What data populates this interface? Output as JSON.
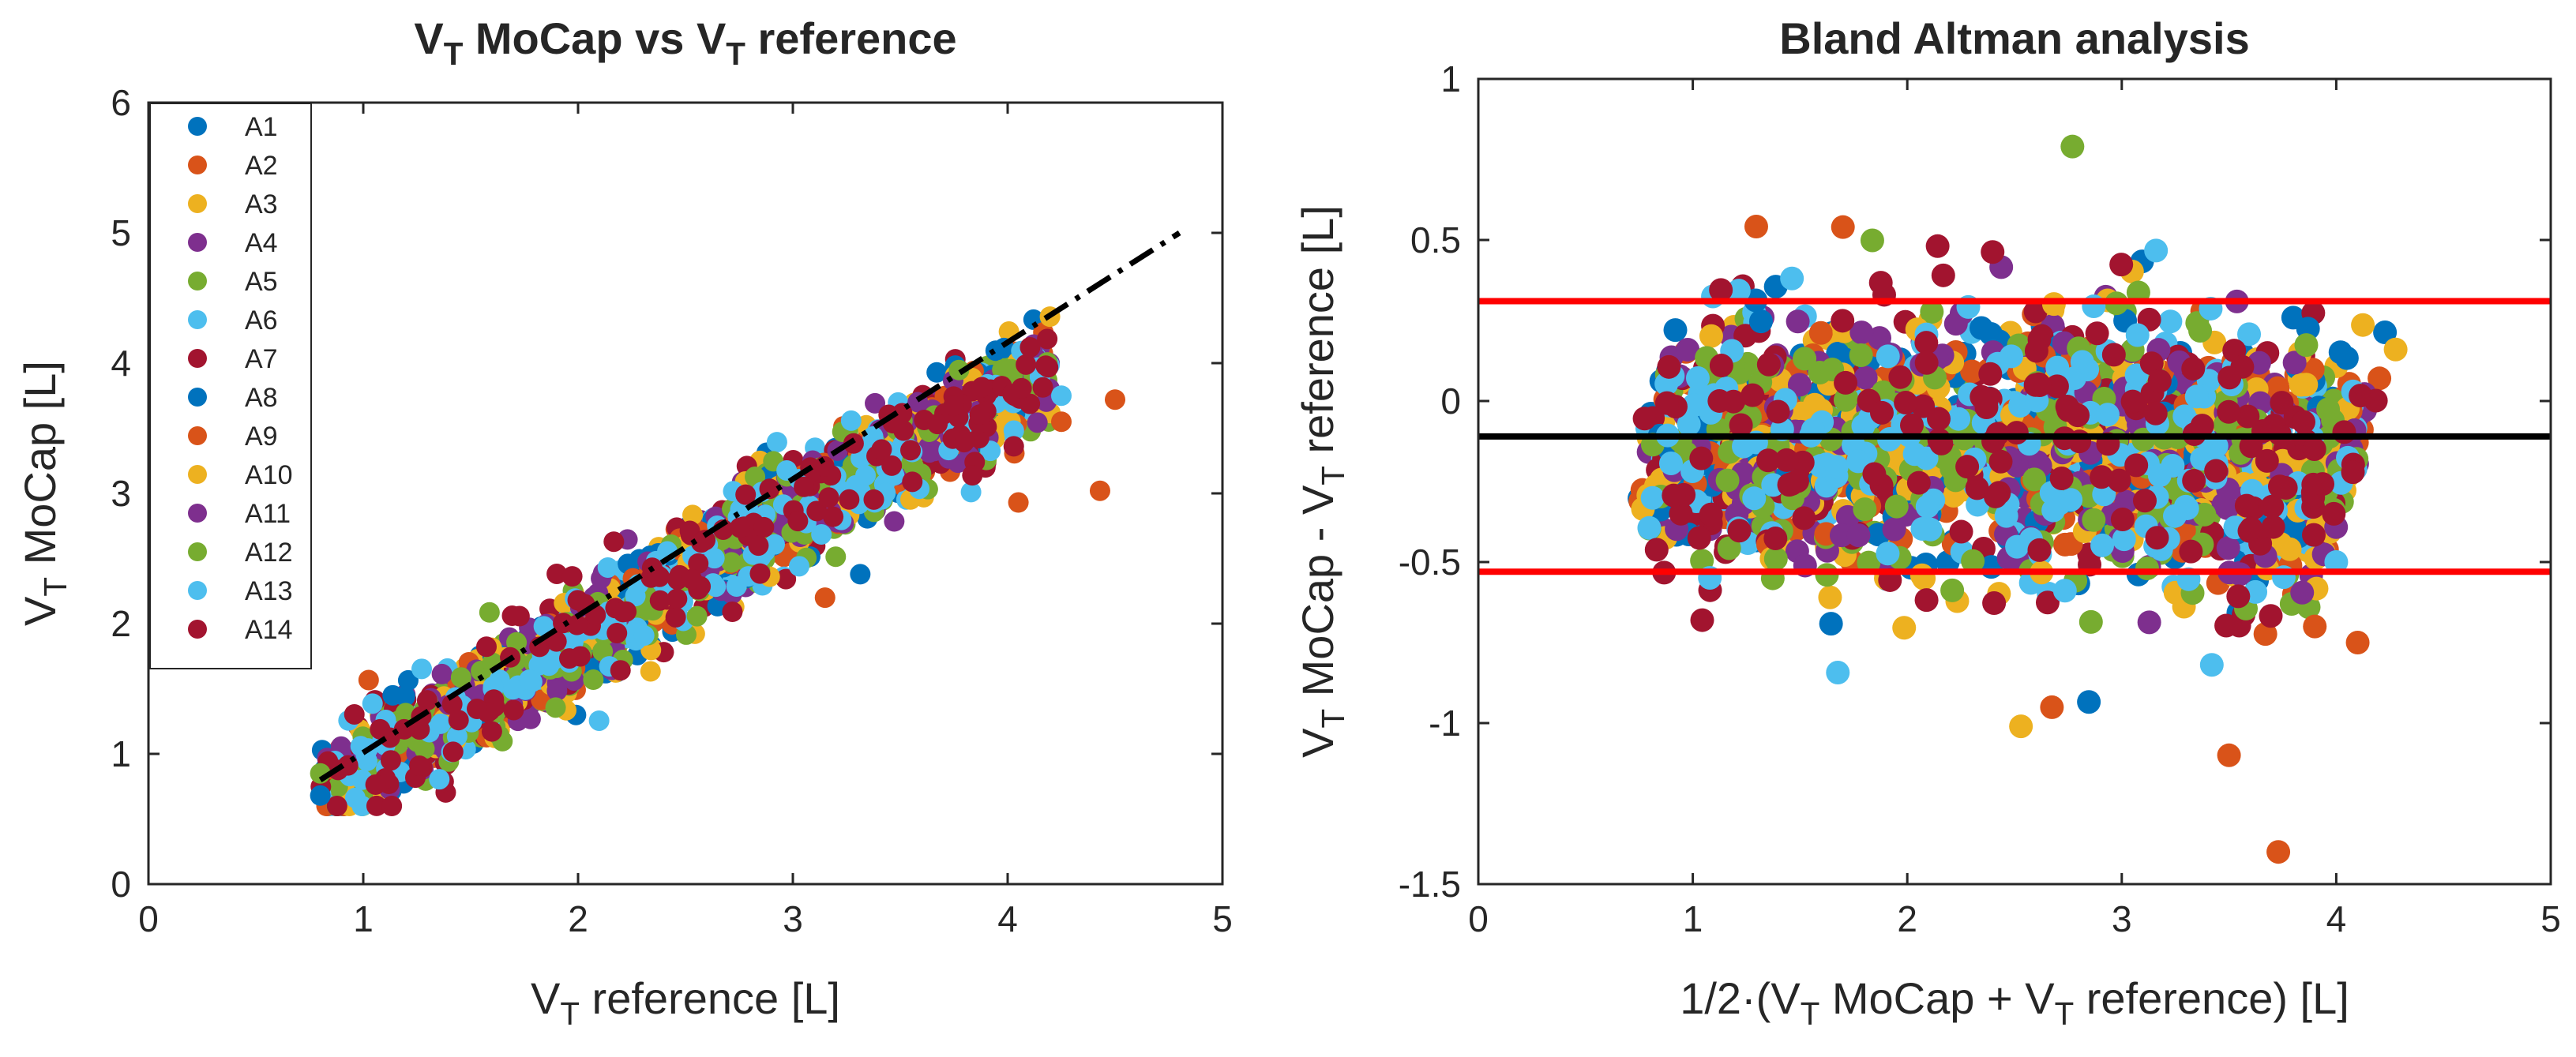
{
  "chart_data": [
    {
      "type": "scatter",
      "title": {
        "main": "V",
        "sub1": "T",
        "mid": " MoCap vs V",
        "sub2": "T",
        "end": " reference"
      },
      "xlabel": {
        "main": "V",
        "sub": "T",
        "rest": " reference [L]"
      },
      "ylabel": {
        "main": "V",
        "sub": "T",
        "rest": " MoCap [L]"
      },
      "xlim": [
        0,
        5
      ],
      "ylim": [
        0,
        6
      ],
      "xticks": [
        "0",
        "1",
        "2",
        "3",
        "4",
        "5"
      ],
      "yticks": [
        "0",
        "1",
        "2",
        "3",
        "4",
        "5",
        "6"
      ],
      "legend": [
        "A1",
        "A2",
        "A3",
        "A4",
        "A5",
        "A6",
        "A7",
        "A8",
        "A9",
        "A10",
        "A11",
        "A12",
        "A13",
        "A14"
      ],
      "legend_position": "top-left",
      "identity_line": {
        "style": "dash-dot",
        "color": "#000000",
        "x": [
          0.8,
          4.8
        ],
        "y": [
          0.8,
          5.0
        ]
      },
      "point_model": {
        "description": "dense clusters along V_T MoCap ≈ V_T reference",
        "x_range": [
          0.8,
          4.5
        ],
        "spread": 0.22
      },
      "notable_points": [
        {
          "x": 4.25,
          "y": 3.75,
          "series": "A13"
        },
        {
          "x": 4.5,
          "y": 3.72,
          "series": "A9"
        },
        {
          "x": 4.25,
          "y": 3.55,
          "series": "A2"
        },
        {
          "x": 4.43,
          "y": 3.02,
          "series": "A9"
        },
        {
          "x": 4.05,
          "y": 2.93,
          "series": "A2"
        },
        {
          "x": 0.8,
          "y": 0.68,
          "series": "A1"
        },
        {
          "x": 0.8,
          "y": 0.85,
          "series": "A5"
        }
      ]
    },
    {
      "type": "scatter",
      "title": "Bland Altman analysis",
      "xlabel": {
        "pre": "1/2·(V",
        "sub1": "T",
        "mid": " MoCap + V",
        "sub2": "T",
        "end": " reference) [L]"
      },
      "ylabel": {
        "main": "V",
        "sub1": "T",
        "mid": " MoCap - V",
        "sub2": "T",
        "end": " reference [L]"
      },
      "xlim": [
        0,
        5
      ],
      "ylim": [
        -1.5,
        1
      ],
      "xticks": [
        "0",
        "1",
        "2",
        "3",
        "4",
        "5"
      ],
      "yticks": [
        "-1.5",
        "-1",
        "-0.5",
        "0",
        "0.5",
        "1"
      ],
      "mean_line": {
        "y": -0.11,
        "color": "#000000"
      },
      "limits_of_agreement": [
        {
          "y": 0.31,
          "color": "#ff0000"
        },
        {
          "y": -0.53,
          "color": "#ff0000"
        }
      ],
      "point_model": {
        "description": "differences around mean bias",
        "x_range": [
          0.75,
          4.3
        ],
        "y_range": [
          -0.95,
          0.8
        ]
      },
      "notable_points": [
        {
          "x": 3.73,
          "y": -1.4,
          "series": "A2"
        },
        {
          "x": 3.5,
          "y": -1.1,
          "series": "A9"
        },
        {
          "x": 2.53,
          "y": -1.01,
          "series": "A3"
        },
        {
          "x": 2.77,
          "y": 0.79,
          "series": "A5"
        },
        {
          "x": 1.7,
          "y": 0.54,
          "series": "A2"
        },
        {
          "x": 4.1,
          "y": -0.75,
          "series": "A9"
        },
        {
          "x": 3.9,
          "y": -0.7,
          "series": "A2"
        },
        {
          "x": 4.0,
          "y": -0.5,
          "series": "A6"
        }
      ]
    }
  ],
  "series_colors": [
    "#0072BD",
    "#D95319",
    "#EDB120",
    "#7E2F8E",
    "#77AC30",
    "#4DBEEE",
    "#A2142F",
    "#0072BD",
    "#D95319",
    "#EDB120",
    "#7E2F8E",
    "#77AC30",
    "#4DBEEE",
    "#A2142F"
  ]
}
